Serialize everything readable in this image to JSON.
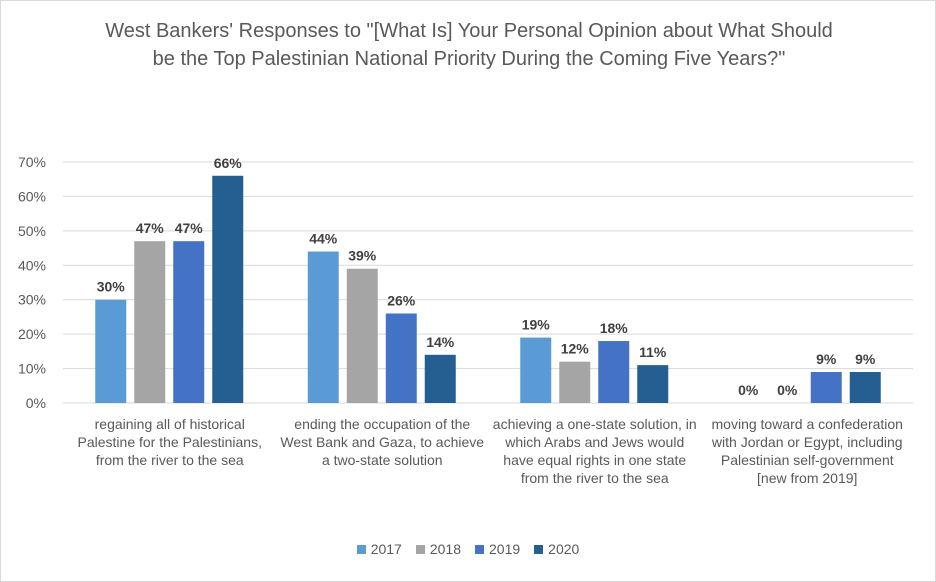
{
  "chart_data": {
    "type": "bar",
    "title": "West Bankers' Responses to \"[What Is] Your Personal Opinion about What Should be the Top Palestinian National Priority During the Coming Five Years?\"",
    "categories": [
      "regaining all of historical Palestine for the Palestinians, from the river to the sea",
      "ending the occupation of the West Bank and Gaza, to achieve a two-state solution",
      "achieving a one-state solution, in which Arabs and Jews would have equal rights in one state from the river to the sea",
      "moving toward a confederation with Jordan or Egypt, including Palestinian self-government [new from 2019]"
    ],
    "series": [
      {
        "name": "2017",
        "color": "#5B9BD5",
        "values": [
          30,
          44,
          19,
          0
        ],
        "labels": [
          "30%",
          "44%",
          "19%",
          "0%"
        ]
      },
      {
        "name": "2018",
        "color": "#A5A5A5",
        "values": [
          47,
          39,
          12,
          0
        ],
        "labels": [
          "47%",
          "39%",
          "12%",
          "0%"
        ]
      },
      {
        "name": "2019",
        "color": "#4472C4",
        "values": [
          47,
          26,
          18,
          9
        ],
        "labels": [
          "47%",
          "26%",
          "18%",
          "9%"
        ]
      },
      {
        "name": "2020",
        "color": "#255E91",
        "values": [
          66,
          14,
          11,
          9
        ],
        "labels": [
          "66%",
          "14%",
          "11%",
          "9%"
        ]
      }
    ],
    "ylim": [
      0,
      70
    ],
    "yticks": [
      "0%",
      "10%",
      "20%",
      "30%",
      "40%",
      "50%",
      "60%",
      "70%"
    ],
    "grid": true,
    "legend": "bottom",
    "xlabel": "",
    "ylabel": ""
  }
}
